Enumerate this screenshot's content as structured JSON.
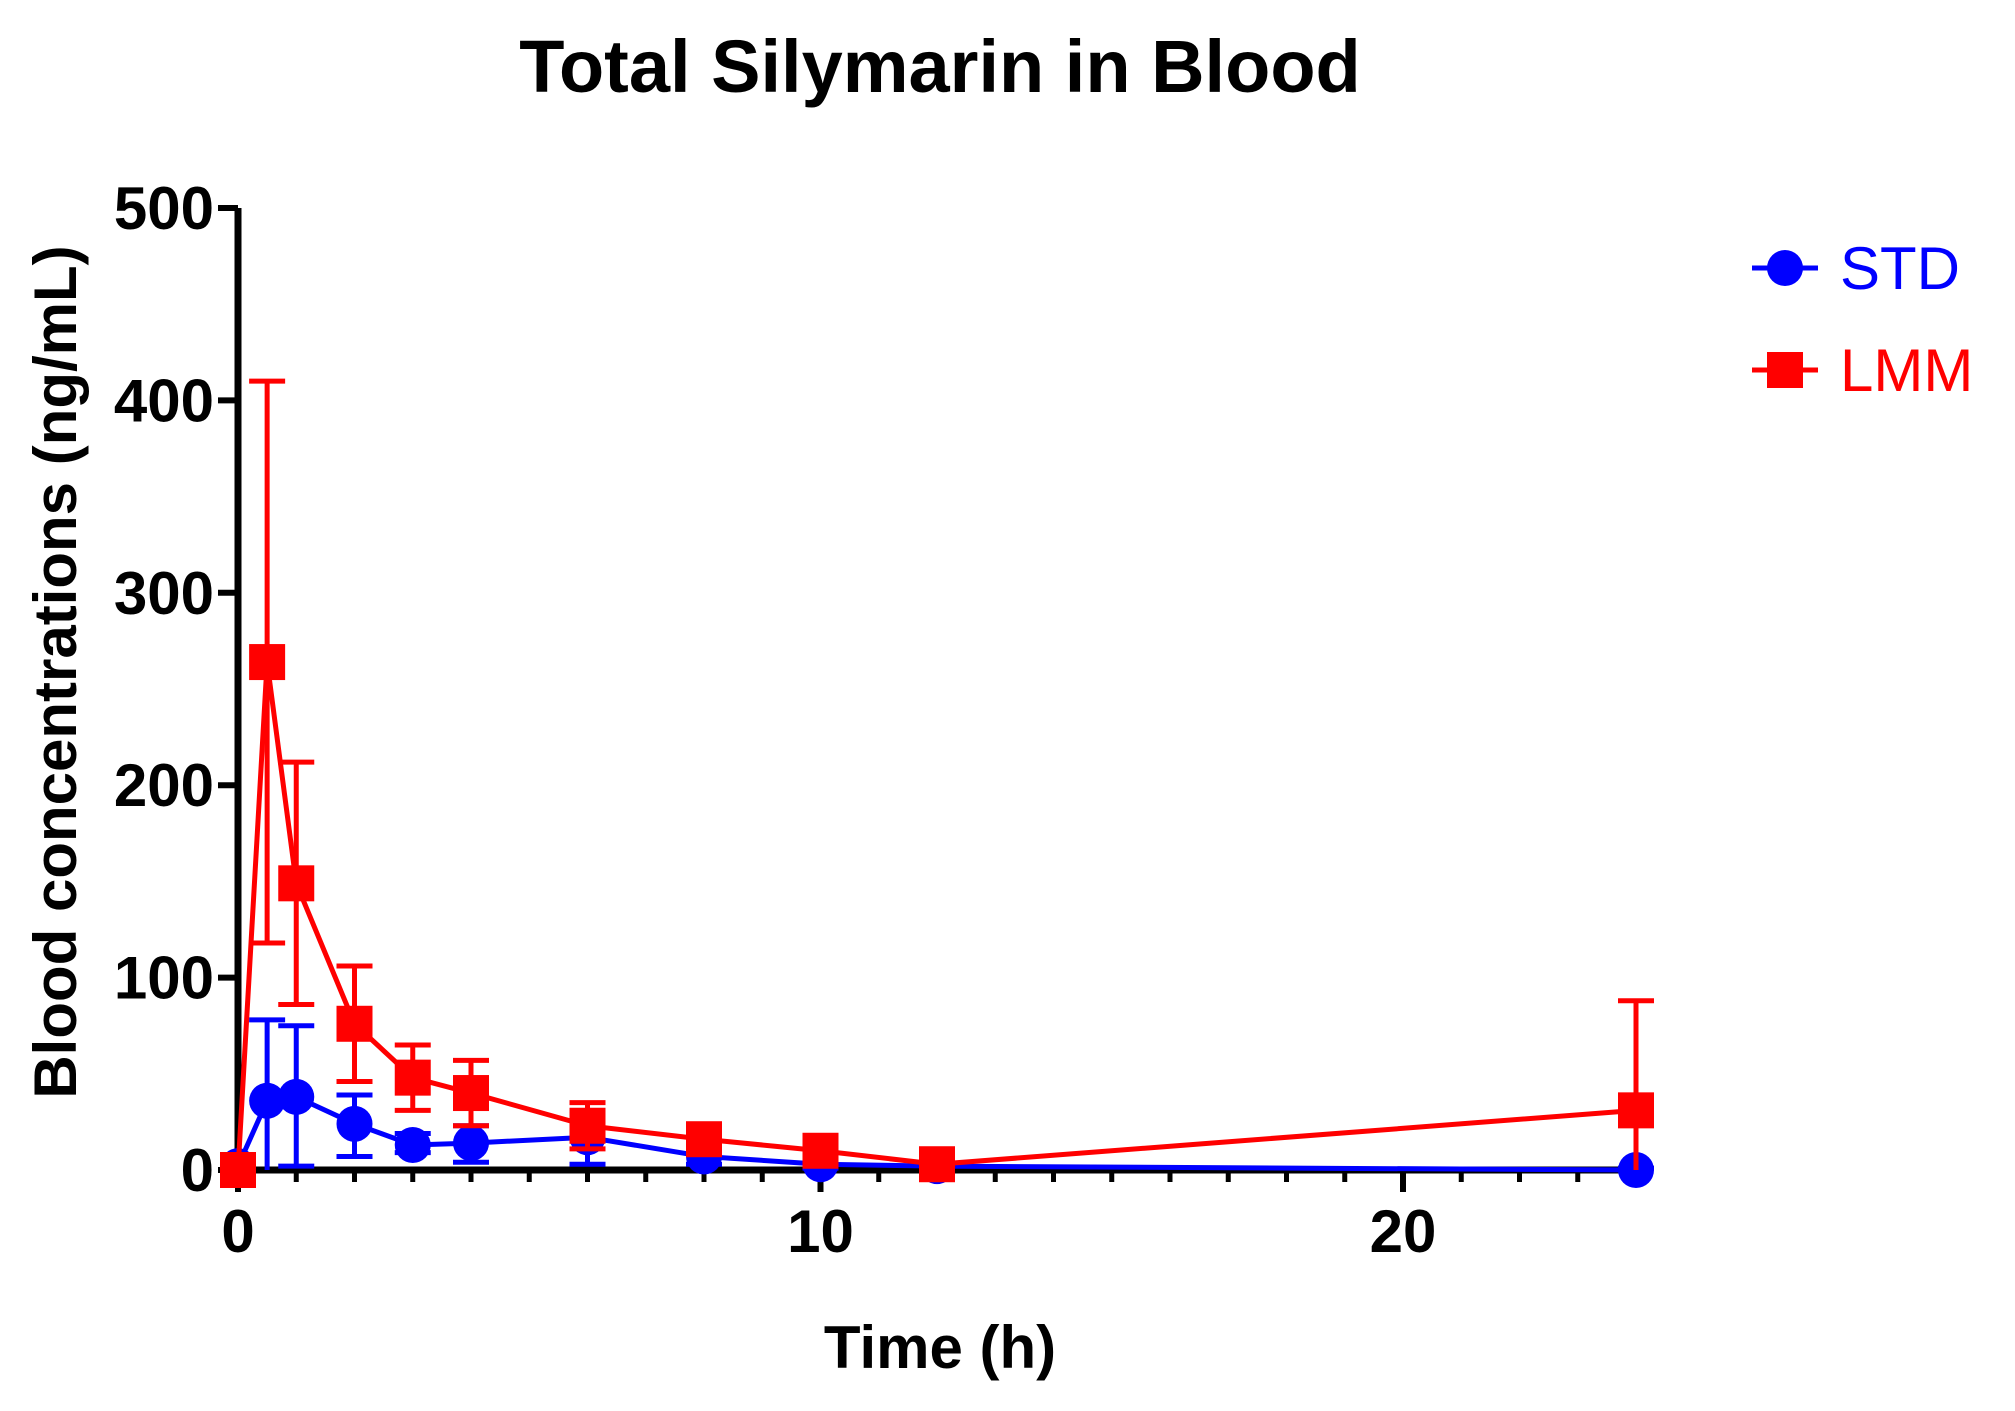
{
  "chart_data": {
    "type": "line",
    "title": "Total Silymarin in Blood",
    "xlabel": "Time (h)",
    "ylabel": "Blood concentrations (ng/mL)",
    "xlim": [
      0,
      24
    ],
    "ylim": [
      0,
      500
    ],
    "x_ticks": [
      0,
      10,
      20
    ],
    "x_tick_labels": [
      "0",
      "10",
      "20"
    ],
    "y_ticks": [
      0,
      100,
      200,
      300,
      400,
      500
    ],
    "y_tick_labels": [
      "0",
      "100",
      "200",
      "300",
      "400",
      "500"
    ],
    "legend_position": "top-right",
    "series": [
      {
        "name": "STD",
        "color": "#0000ff",
        "marker": "circle",
        "x": [
          0,
          0.5,
          1,
          2,
          3,
          4,
          6,
          8,
          10,
          12,
          24
        ],
        "y": [
          2,
          36,
          38,
          24,
          13,
          14,
          17,
          7,
          3,
          2,
          0
        ],
        "err_up": [
          3,
          42,
          37,
          15,
          6,
          9,
          12,
          4,
          2,
          2,
          1
        ],
        "err_down": [
          2,
          36,
          36,
          17,
          4,
          10,
          14,
          4,
          2,
          2,
          0
        ]
      },
      {
        "name": "LMM",
        "color": "#ff0000",
        "marker": "square",
        "x": [
          0,
          0.5,
          1,
          2,
          3,
          4,
          6,
          8,
          10,
          12,
          24
        ],
        "y": [
          0,
          264,
          149,
          76,
          48,
          40,
          23,
          16,
          10,
          3,
          31
        ],
        "err_up": [
          8,
          146,
          63,
          30,
          17,
          17,
          12,
          6,
          4,
          4,
          57
        ],
        "err_down": [
          0,
          146,
          63,
          30,
          17,
          17,
          12,
          6,
          4,
          3,
          31
        ]
      }
    ]
  },
  "colors": {
    "axis": "#000000",
    "std": "#0000ff",
    "lmm": "#ff0000"
  }
}
